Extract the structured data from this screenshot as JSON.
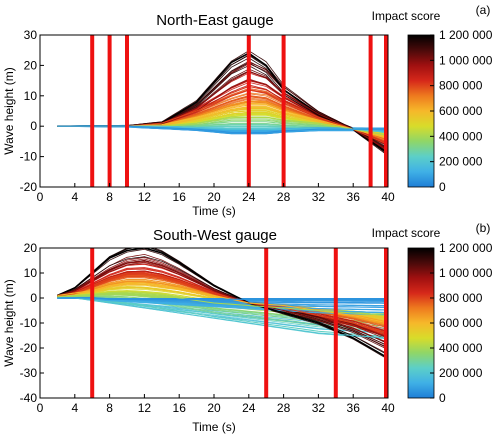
{
  "chart_data": [
    {
      "type": "line",
      "panel_label": "(a)",
      "title": "North-East gauge",
      "xlabel": "Time (s)",
      "ylabel": "Wave height (m)",
      "xlim": [
        0,
        40
      ],
      "ylim": [
        -20,
        30
      ],
      "xticks": [
        0,
        4,
        8,
        12,
        16,
        20,
        24,
        28,
        32,
        36,
        40
      ],
      "yticks": [
        -20,
        -10,
        0,
        10,
        20,
        30
      ],
      "start_time": 2,
      "vertical_markers": [
        6,
        8,
        10,
        24,
        28,
        38,
        40
      ],
      "marker_color": "#ee1111",
      "ensemble_description_note": null,
      "grid": false,
      "representative_series": [
        {
          "impact": 1200000,
          "x": [
            2,
            6,
            10,
            14,
            18,
            22,
            24,
            26,
            28,
            32,
            36,
            40
          ],
          "y": [
            0,
            0,
            0,
            1,
            8,
            21,
            24,
            20,
            12,
            4,
            -1,
            -9
          ]
        },
        {
          "impact": 1000000,
          "x": [
            2,
            6,
            10,
            14,
            18,
            22,
            24,
            26,
            28,
            32,
            36,
            40
          ],
          "y": [
            0,
            0,
            0,
            1,
            6,
            15,
            18,
            16,
            11,
            4,
            -1,
            -8
          ]
        },
        {
          "impact": 800000,
          "x": [
            2,
            6,
            10,
            14,
            18,
            22,
            24,
            26,
            28,
            32,
            36,
            40
          ],
          "y": [
            0,
            0,
            0,
            1,
            5,
            10,
            12,
            11,
            8,
            3,
            -1,
            -6
          ]
        },
        {
          "impact": 600000,
          "x": [
            2,
            6,
            10,
            14,
            18,
            22,
            24,
            26,
            28,
            32,
            36,
            40
          ],
          "y": [
            0,
            0,
            0,
            0.5,
            3,
            6,
            7,
            7,
            5,
            2,
            -1,
            -4
          ]
        },
        {
          "impact": 400000,
          "x": [
            2,
            6,
            10,
            14,
            18,
            22,
            24,
            26,
            28,
            32,
            36,
            40
          ],
          "y": [
            0,
            0,
            0,
            0,
            1,
            3,
            3,
            3,
            2,
            1,
            -1,
            -3
          ]
        },
        {
          "impact": 200000,
          "x": [
            2,
            6,
            10,
            14,
            18,
            22,
            24,
            26,
            28,
            32,
            36,
            40
          ],
          "y": [
            0,
            0,
            0,
            0,
            -0.5,
            -1,
            -1,
            -1,
            -1,
            -1,
            -1,
            -2
          ]
        },
        {
          "impact": 50000,
          "x": [
            2,
            6,
            10,
            14,
            18,
            22,
            24,
            26,
            28,
            32,
            36,
            40
          ],
          "y": [
            0,
            0,
            0,
            -0.5,
            -1,
            -2,
            -2,
            -2,
            -1.5,
            -1,
            -1,
            -1
          ]
        }
      ],
      "colorbar": {
        "label": "Impact score",
        "min": 0,
        "max": 1200000,
        "ticks": [
          0,
          200000,
          400000,
          600000,
          800000,
          1000000,
          1200000
        ],
        "tick_labels": [
          "0",
          "200 000",
          "400 000",
          "600 000",
          "800 000",
          "1 000 000",
          "1 200 000"
        ],
        "colormap": [
          "#1f7ed6",
          "#3fb0e6",
          "#5ccfc8",
          "#8fd668",
          "#d8dc2a",
          "#f6b82a",
          "#ee7a1e",
          "#d6281a",
          "#a01010",
          "#4a0a0a",
          "#000000"
        ]
      }
    },
    {
      "type": "line",
      "panel_label": "(b)",
      "title": "South-West gauge",
      "xlabel": "Time (s)",
      "ylabel": "Wave height (m)",
      "xlim": [
        0,
        40
      ],
      "ylim": [
        -40,
        20
      ],
      "xticks": [
        0,
        4,
        8,
        12,
        16,
        20,
        24,
        28,
        32,
        36,
        40
      ],
      "yticks": [
        -40,
        -30,
        -20,
        -10,
        0,
        10,
        20
      ],
      "start_time": 2,
      "vertical_markers": [
        6,
        26,
        34,
        40
      ],
      "marker_color": "#ee1111",
      "grid": false,
      "representative_series": [
        {
          "impact": 1200000,
          "x": [
            2,
            4,
            6,
            8,
            10,
            12,
            14,
            16,
            20,
            24,
            28,
            32,
            36,
            40
          ],
          "y": [
            1,
            4,
            10,
            16,
            19,
            20,
            18,
            14,
            5,
            -2,
            -6,
            -10,
            -16,
            -24
          ]
        },
        {
          "impact": 1000000,
          "x": [
            2,
            4,
            6,
            8,
            10,
            12,
            14,
            16,
            20,
            24,
            28,
            32,
            36,
            40
          ],
          "y": [
            1,
            3,
            7,
            11,
            14,
            15,
            13,
            10,
            3,
            -2,
            -5,
            -8,
            -12,
            -18
          ]
        },
        {
          "impact": 800000,
          "x": [
            2,
            4,
            6,
            8,
            10,
            12,
            14,
            16,
            20,
            24,
            28,
            32,
            36,
            40
          ],
          "y": [
            1,
            2,
            5,
            8,
            10,
            10,
            9,
            7,
            2,
            -2,
            -4,
            -7,
            -10,
            -14
          ]
        },
        {
          "impact": 600000,
          "x": [
            2,
            4,
            6,
            8,
            10,
            12,
            14,
            16,
            20,
            24,
            28,
            32,
            36,
            40
          ],
          "y": [
            1,
            2,
            3,
            5,
            6,
            6,
            5,
            4,
            1,
            -2,
            -3,
            -5,
            -7,
            -10
          ]
        },
        {
          "impact": 400000,
          "x": [
            2,
            4,
            6,
            8,
            10,
            12,
            14,
            16,
            20,
            24,
            28,
            32,
            36,
            40
          ],
          "y": [
            0.5,
            1,
            1.5,
            2,
            2,
            1.5,
            1,
            0,
            -2,
            -3,
            -4,
            -5,
            -6,
            -7
          ]
        },
        {
          "impact": 200000,
          "x": [
            2,
            4,
            6,
            8,
            10,
            12,
            14,
            16,
            20,
            24,
            28,
            32,
            36,
            40
          ],
          "y": [
            0,
            0,
            -1,
            -2,
            -3,
            -4,
            -5,
            -6,
            -8,
            -10,
            -12,
            -14,
            -15,
            -16
          ]
        },
        {
          "impact": 50000,
          "x": [
            2,
            4,
            6,
            8,
            10,
            12,
            14,
            16,
            20,
            24,
            28,
            32,
            36,
            40
          ],
          "y": [
            0,
            0,
            0,
            -0.5,
            -0.5,
            -0.5,
            -0.5,
            -0.5,
            -0.5,
            -0.5,
            -0.5,
            -0.5,
            -0.5,
            -0.5
          ]
        }
      ],
      "colorbar": {
        "label": "Impact score",
        "min": 0,
        "max": 1200000,
        "ticks": [
          0,
          200000,
          400000,
          600000,
          800000,
          1000000,
          1200000
        ],
        "tick_labels": [
          "0",
          "200 000",
          "400 000",
          "600 000",
          "800 000",
          "1 000 000",
          "1 200 000"
        ],
        "colormap": [
          "#1f7ed6",
          "#3fb0e6",
          "#5ccfc8",
          "#8fd668",
          "#d8dc2a",
          "#f6b82a",
          "#ee7a1e",
          "#d6281a",
          "#a01010",
          "#4a0a0a",
          "#000000"
        ]
      }
    }
  ]
}
